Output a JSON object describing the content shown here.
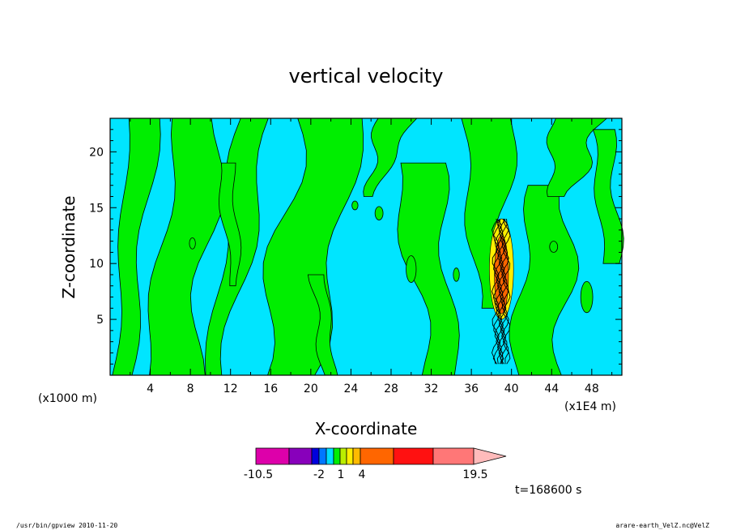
{
  "chart_data": {
    "type": "heatmap",
    "title": "vertical velocity",
    "xlabel": "X-coordinate",
    "ylabel": "Z-coordinate",
    "x_unit_label": "(x1000 m)",
    "x_range_unit_label": "(x1E4 m)",
    "xlim": [
      0,
      51
    ],
    "ylim": [
      0,
      23
    ],
    "x_ticks": [
      "4",
      "8",
      "12",
      "16",
      "20",
      "24",
      "28",
      "32",
      "36",
      "40",
      "44",
      "48"
    ],
    "y_ticks": [
      "5",
      "10",
      "15",
      "20"
    ],
    "grid": false,
    "time_label": "t=168600 s",
    "colorbar": {
      "colors": [
        "#dd00aa",
        "#8800bb",
        "#0000dd",
        "#0077ff",
        "#00ddff",
        "#00ee00",
        "#bbee00",
        "#ffee00",
        "#ffbb00",
        "#ff6600",
        "#ff1111",
        "#ff7777",
        "#ffbbbb"
      ],
      "tick_labels": [
        "-10.5",
        "-2",
        "1",
        "4",
        "19.5"
      ]
    },
    "field_colors": {
      "negative": "#00e5ff",
      "positive": "#00ee00",
      "contour": "#000000"
    }
  },
  "footer": {
    "left": "/usr/bin/gpview  2010-11-20",
    "right": "arare-earth_VelZ.nc@VelZ"
  }
}
